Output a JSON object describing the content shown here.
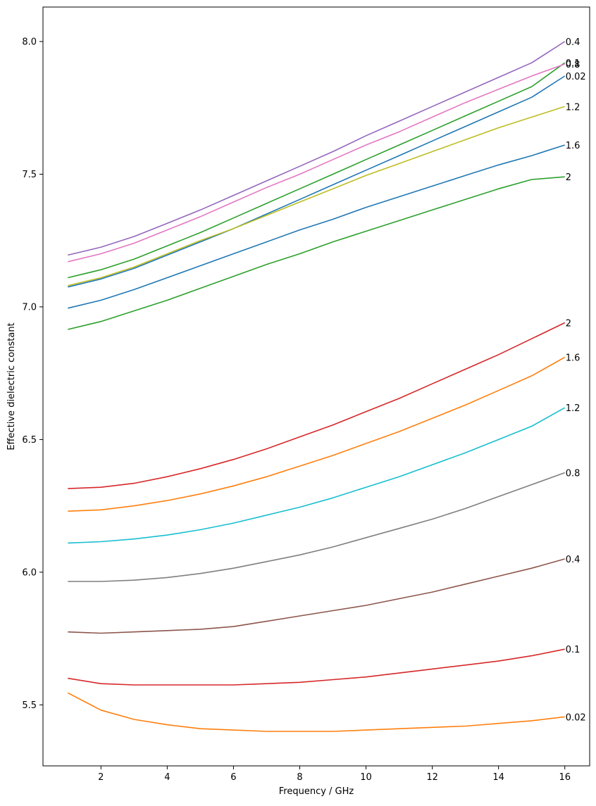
{
  "chart_data": {
    "type": "line",
    "title": "",
    "xlabel": "Frequency / GHz",
    "ylabel": "Effective dielectric constant",
    "xlim": [
      0.25,
      16.75
    ],
    "ylim": [
      5.27,
      8.13
    ],
    "xticks": [
      2,
      4,
      6,
      8,
      10,
      12,
      14,
      16
    ],
    "yticks": [
      5.5,
      6.0,
      6.5,
      7.0,
      7.5,
      8.0
    ],
    "xtick_labels": [
      "2",
      "4",
      "6",
      "8",
      "10",
      "12",
      "14",
      "16"
    ],
    "ytick_labels": [
      "5.5",
      "6.0",
      "6.5",
      "7.0",
      "7.5",
      "8.0"
    ],
    "grid": false,
    "x": [
      1,
      2,
      3,
      4,
      5,
      6,
      7,
      8,
      9,
      10,
      11,
      12,
      13,
      14,
      15,
      16
    ],
    "series": [
      {
        "name": "0.02",
        "color": "#1f77b4",
        "label": "0.02",
        "values": [
          7.075,
          7.105,
          7.145,
          7.195,
          7.245,
          7.295,
          7.35,
          7.405,
          7.46,
          7.515,
          7.57,
          7.625,
          7.68,
          7.735,
          7.79,
          7.87
        ]
      },
      {
        "name": "0.1",
        "color": "#2ca02c",
        "label": "0.1",
        "values": [
          7.11,
          7.14,
          7.18,
          7.23,
          7.28,
          7.335,
          7.39,
          7.445,
          7.5,
          7.555,
          7.61,
          7.665,
          7.72,
          7.775,
          7.83,
          7.92
        ]
      },
      {
        "name": "0.4",
        "color": "#9467bd",
        "label": "0.4",
        "values": [
          7.195,
          7.225,
          7.265,
          7.315,
          7.365,
          7.42,
          7.475,
          7.53,
          7.585,
          7.645,
          7.7,
          7.755,
          7.81,
          7.865,
          7.92,
          8.0
        ]
      },
      {
        "name": "0.8",
        "color": "#e377c2",
        "label": "0.8",
        "values": [
          7.17,
          7.2,
          7.24,
          7.29,
          7.34,
          7.395,
          7.45,
          7.5,
          7.555,
          7.61,
          7.66,
          7.715,
          7.77,
          7.82,
          7.87,
          7.915
        ]
      },
      {
        "name": "1.2",
        "color": "#bcbd22",
        "label": "1.2",
        "values": [
          7.08,
          7.11,
          7.15,
          7.2,
          7.25,
          7.295,
          7.345,
          7.395,
          7.445,
          7.495,
          7.54,
          7.585,
          7.63,
          7.675,
          7.715,
          7.755
        ]
      },
      {
        "name": "1.6",
        "color": "#1f77b4",
        "label": "1.6",
        "values": [
          6.995,
          7.025,
          7.065,
          7.11,
          7.155,
          7.2,
          7.245,
          7.29,
          7.33,
          7.375,
          7.415,
          7.455,
          7.495,
          7.535,
          7.57,
          7.61
        ]
      },
      {
        "name": "2",
        "color": "#2ca02c",
        "label": "2",
        "values": [
          6.915,
          6.945,
          6.985,
          7.025,
          7.07,
          7.115,
          7.16,
          7.2,
          7.245,
          7.285,
          7.325,
          7.365,
          7.405,
          7.445,
          7.48,
          7.49
        ]
      },
      {
        "name": "2",
        "color": "#d62728",
        "label": "2",
        "values": [
          6.315,
          6.32,
          6.335,
          6.36,
          6.39,
          6.425,
          6.465,
          6.51,
          6.555,
          6.605,
          6.655,
          6.71,
          6.765,
          6.82,
          6.88,
          6.94
        ]
      },
      {
        "name": "1.6",
        "color": "#ff7f0e",
        "label": "1.6",
        "values": [
          6.23,
          6.235,
          6.25,
          6.27,
          6.295,
          6.325,
          6.36,
          6.4,
          6.44,
          6.485,
          6.53,
          6.58,
          6.63,
          6.685,
          6.74,
          6.81
        ]
      },
      {
        "name": "1.2",
        "color": "#17becf",
        "label": "1.2",
        "values": [
          6.11,
          6.115,
          6.125,
          6.14,
          6.16,
          6.185,
          6.215,
          6.245,
          6.28,
          6.32,
          6.36,
          6.405,
          6.45,
          6.5,
          6.55,
          6.62
        ]
      },
      {
        "name": "0.8",
        "color": "#7f7f7f",
        "label": "0.8",
        "values": [
          5.965,
          5.965,
          5.97,
          5.98,
          5.995,
          6.015,
          6.04,
          6.065,
          6.095,
          6.13,
          6.165,
          6.2,
          6.24,
          6.285,
          6.33,
          6.375
        ]
      },
      {
        "name": "0.4",
        "color": "#8c564b",
        "label": "0.4",
        "values": [
          5.775,
          5.77,
          5.775,
          5.78,
          5.785,
          5.795,
          5.815,
          5.835,
          5.855,
          5.875,
          5.9,
          5.925,
          5.955,
          5.985,
          6.015,
          6.05
        ]
      },
      {
        "name": "0.1",
        "color": "#d62728",
        "label": "0.1",
        "values": [
          5.6,
          5.58,
          5.575,
          5.575,
          5.575,
          5.575,
          5.58,
          5.585,
          5.595,
          5.605,
          5.62,
          5.635,
          5.65,
          5.665,
          5.685,
          5.71
        ]
      },
      {
        "name": "0.02",
        "color": "#ff7f0e",
        "label": "0.02",
        "values": [
          5.545,
          5.48,
          5.445,
          5.425,
          5.41,
          5.405,
          5.4,
          5.4,
          5.4,
          5.405,
          5.41,
          5.415,
          5.42,
          5.43,
          5.44,
          5.455
        ]
      }
    ]
  }
}
